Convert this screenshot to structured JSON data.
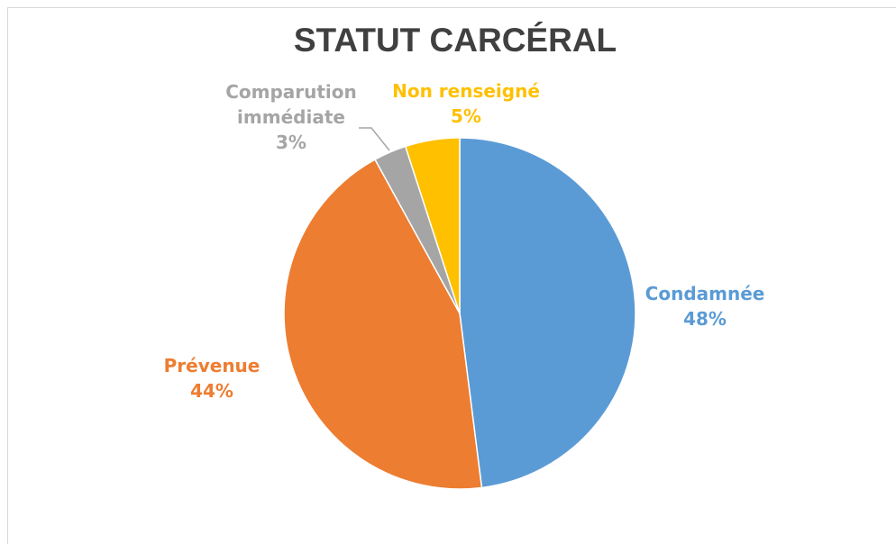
{
  "chart_data": {
    "type": "pie",
    "title": "STATUT CARCÉRAL",
    "categories": [
      "Condamnée",
      "Prévenue",
      "Comparution immédiate",
      "Non renseigné"
    ],
    "values": [
      48,
      44,
      3,
      5
    ],
    "value_labels": [
      "48%",
      "44%",
      "3%",
      "5%"
    ],
    "colors": [
      "#5b9bd5",
      "#ed7d31",
      "#a5a5a5",
      "#ffc000"
    ]
  }
}
